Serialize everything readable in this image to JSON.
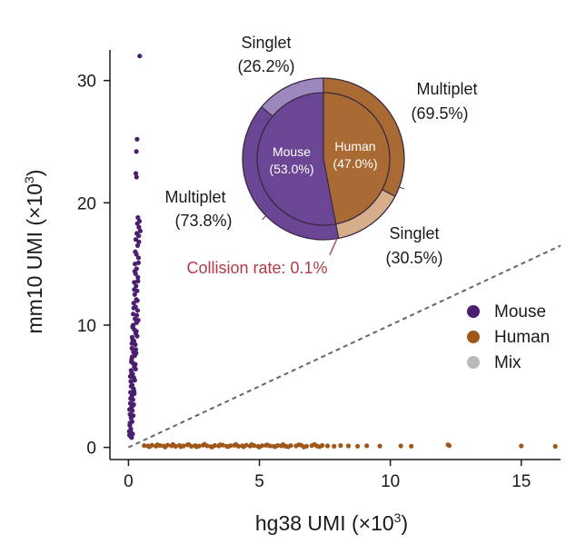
{
  "chart_data": {
    "type": "scatter",
    "title": "",
    "xlabel": "hg38 UMI (×10",
    "xlabel_sup": "3",
    "xlabel_end": ")",
    "ylabel": "mm10 UMI (×10",
    "ylabel_sup": "3",
    "ylabel_end": ")",
    "xlim": [
      -0.5,
      16.5
    ],
    "ylim": [
      -0.4,
      32.5
    ],
    "xticks": [
      0,
      5,
      10,
      15
    ],
    "yticks": [
      0,
      10,
      20,
      30
    ],
    "diagonal": {
      "style": "dashed",
      "from": [
        0,
        0
      ],
      "to": [
        16.5,
        16.5
      ]
    },
    "colors": {
      "Mouse": "#4b1f6f",
      "Human": "#a0581a",
      "Mix": "#b9b9b9",
      "pie_mouse": "#6a4695",
      "pie_human": "#aa6a34",
      "pie_mouse_singlet": "#9d88bd",
      "pie_human_singlet": "#d6ae8a",
      "collision": "#b23a48",
      "diagonal": "#666666"
    },
    "legend": {
      "position": "right",
      "entries": [
        "Mouse",
        "Human",
        "Mix"
      ]
    },
    "series": [
      {
        "name": "Mouse",
        "points": [
          [
            0.43,
            32.0
          ],
          [
            0.33,
            25.2
          ],
          [
            0.3,
            24.2
          ],
          [
            0.28,
            22.4
          ],
          [
            0.31,
            22.1
          ],
          [
            0.36,
            18.8
          ],
          [
            0.34,
            18.3
          ],
          [
            0.4,
            18.0
          ],
          [
            0.32,
            17.5
          ],
          [
            0.45,
            17.7
          ],
          [
            0.28,
            17.0
          ],
          [
            0.35,
            16.5
          ],
          [
            0.3,
            15.8
          ],
          [
            0.38,
            15.5
          ],
          [
            0.25,
            15.0
          ],
          [
            0.31,
            14.6
          ],
          [
            0.27,
            14.2
          ],
          [
            0.36,
            13.9
          ],
          [
            0.22,
            13.5
          ],
          [
            0.29,
            13.2
          ],
          [
            0.33,
            12.8
          ],
          [
            0.24,
            12.5
          ],
          [
            0.3,
            12.1
          ],
          [
            0.2,
            11.8
          ],
          [
            0.27,
            11.5
          ],
          [
            0.35,
            11.2
          ],
          [
            0.18,
            10.9
          ],
          [
            0.25,
            10.5
          ],
          [
            0.31,
            10.2
          ],
          [
            0.16,
            9.9
          ],
          [
            0.23,
            9.6
          ],
          [
            0.28,
            9.3
          ],
          [
            0.14,
            9.0
          ],
          [
            0.21,
            8.7
          ],
          [
            0.26,
            8.4
          ],
          [
            0.13,
            8.1
          ],
          [
            0.19,
            7.8
          ],
          [
            0.24,
            7.5
          ],
          [
            0.12,
            7.2
          ],
          [
            0.17,
            6.9
          ],
          [
            0.22,
            6.6
          ],
          [
            0.1,
            6.3
          ],
          [
            0.16,
            6.0
          ],
          [
            0.2,
            5.7
          ],
          [
            0.09,
            5.4
          ],
          [
            0.14,
            5.1
          ],
          [
            0.19,
            4.8
          ],
          [
            0.08,
            4.5
          ],
          [
            0.13,
            4.2
          ],
          [
            0.17,
            3.9
          ],
          [
            0.07,
            3.6
          ],
          [
            0.12,
            3.3
          ],
          [
            0.15,
            3.0
          ],
          [
            0.06,
            2.7
          ],
          [
            0.1,
            2.4
          ],
          [
            0.14,
            2.1
          ],
          [
            0.05,
            1.8
          ],
          [
            0.09,
            1.5
          ],
          [
            0.11,
            1.2
          ],
          [
            0.04,
            1.0
          ],
          [
            0.08,
            0.9
          ],
          [
            0.03,
            1.3
          ],
          [
            0.12,
            0.8
          ],
          [
            0.16,
            1.1
          ],
          [
            0.06,
            2.0
          ],
          [
            0.18,
            2.6
          ],
          [
            0.04,
            3.1
          ],
          [
            0.2,
            3.5
          ],
          [
            0.08,
            4.0
          ],
          [
            0.22,
            4.4
          ],
          [
            0.1,
            5.0
          ],
          [
            0.24,
            5.5
          ],
          [
            0.12,
            6.1
          ],
          [
            0.26,
            6.8
          ],
          [
            0.14,
            7.4
          ],
          [
            0.28,
            8.0
          ],
          [
            0.16,
            8.8
          ],
          [
            0.3,
            9.5
          ],
          [
            0.18,
            10.0
          ],
          [
            0.32,
            10.8
          ],
          [
            0.2,
            11.4
          ],
          [
            0.34,
            12.0
          ],
          [
            0.22,
            12.9
          ],
          [
            0.36,
            13.6
          ],
          [
            0.24,
            14.4
          ],
          [
            0.38,
            15.1
          ],
          [
            0.26,
            16.0
          ],
          [
            0.4,
            16.8
          ],
          [
            0.39,
            17.3
          ],
          [
            0.42,
            18.5
          ],
          [
            0.15,
            3.4
          ],
          [
            0.21,
            4.6
          ],
          [
            0.07,
            5.8
          ],
          [
            0.27,
            6.4
          ],
          [
            0.11,
            7.0
          ],
          [
            0.29,
            7.7
          ],
          [
            0.13,
            8.5
          ],
          [
            0.33,
            9.1
          ],
          [
            0.17,
            9.8
          ],
          [
            0.37,
            10.4
          ]
        ]
      },
      {
        "name": "Human",
        "points": [
          [
            0.6,
            0.15
          ],
          [
            0.75,
            0.12
          ],
          [
            0.9,
            0.18
          ],
          [
            1.05,
            0.1
          ],
          [
            1.2,
            0.16
          ],
          [
            1.35,
            0.11
          ],
          [
            1.5,
            0.19
          ],
          [
            1.65,
            0.13
          ],
          [
            1.8,
            0.08
          ],
          [
            1.95,
            0.17
          ],
          [
            2.1,
            0.12
          ],
          [
            2.25,
            0.2
          ],
          [
            2.4,
            0.09
          ],
          [
            2.55,
            0.15
          ],
          [
            2.7,
            0.11
          ],
          [
            2.85,
            0.18
          ],
          [
            3.0,
            0.13
          ],
          [
            3.15,
            0.07
          ],
          [
            3.3,
            0.16
          ],
          [
            3.45,
            0.12
          ],
          [
            3.6,
            0.19
          ],
          [
            3.75,
            0.1
          ],
          [
            3.9,
            0.14
          ],
          [
            4.05,
            0.17
          ],
          [
            4.2,
            0.09
          ],
          [
            4.35,
            0.13
          ],
          [
            4.5,
            0.18
          ],
          [
            4.65,
            0.11
          ],
          [
            4.8,
            0.15
          ],
          [
            4.95,
            0.08
          ],
          [
            5.1,
            0.14
          ],
          [
            5.25,
            0.17
          ],
          [
            5.4,
            0.12
          ],
          [
            5.55,
            0.1
          ],
          [
            5.7,
            0.16
          ],
          [
            5.85,
            0.13
          ],
          [
            6.0,
            0.09
          ],
          [
            6.2,
            0.15
          ],
          [
            6.4,
            0.12
          ],
          [
            6.6,
            0.18
          ],
          [
            6.8,
            0.1
          ],
          [
            7.0,
            0.14
          ],
          [
            7.2,
            0.11
          ],
          [
            7.4,
            0.16
          ],
          [
            7.6,
            0.12
          ],
          [
            7.85,
            0.09
          ],
          [
            8.1,
            0.15
          ],
          [
            8.4,
            0.12
          ],
          [
            8.75,
            0.1
          ],
          [
            9.1,
            0.13
          ],
          [
            9.6,
            0.11
          ],
          [
            10.4,
            0.12
          ],
          [
            10.8,
            0.1
          ],
          [
            12.2,
            0.22
          ],
          [
            12.25,
            0.14
          ],
          [
            15.0,
            0.12
          ],
          [
            16.3,
            0.08
          ],
          [
            0.8,
            0.05
          ],
          [
            1.4,
            0.04
          ],
          [
            2.0,
            0.06
          ],
          [
            2.6,
            0.05
          ],
          [
            3.2,
            0.04
          ],
          [
            3.8,
            0.06
          ],
          [
            4.4,
            0.05
          ],
          [
            5.0,
            0.04
          ],
          [
            5.6,
            0.06
          ],
          [
            6.1,
            0.05
          ],
          [
            6.7,
            0.04
          ],
          [
            7.3,
            0.06
          ],
          [
            1.1,
            0.22
          ],
          [
            1.7,
            0.24
          ],
          [
            2.3,
            0.23
          ],
          [
            2.9,
            0.25
          ],
          [
            3.5,
            0.22
          ],
          [
            4.1,
            0.24
          ],
          [
            4.7,
            0.23
          ],
          [
            5.3,
            0.21
          ],
          [
            5.9,
            0.23
          ],
          [
            6.5,
            0.22
          ],
          [
            7.1,
            0.24
          ]
        ]
      },
      {
        "name": "Mix",
        "points": []
      }
    ],
    "inset_pie": {
      "inner": [
        {
          "label": "Mouse",
          "percent": "(53.0%)",
          "value": 53.0
        },
        {
          "label": "Human",
          "percent": "(47.0%)",
          "value": 47.0
        }
      ],
      "outer": [
        {
          "group": "Mouse",
          "label": "Singlet",
          "percent": "(26.2%)",
          "value": 26.2
        },
        {
          "group": "Mouse",
          "label": "Multiplet",
          "percent": "(73.8%)",
          "value": 73.8
        },
        {
          "group": "Human",
          "label": "Multiplet",
          "percent": "(69.5%)",
          "value": 69.5
        },
        {
          "group": "Human",
          "label": "Singlet",
          "percent": "(30.5%)",
          "value": 30.5
        }
      ]
    },
    "annotation": "Collision rate: 0.1%"
  }
}
